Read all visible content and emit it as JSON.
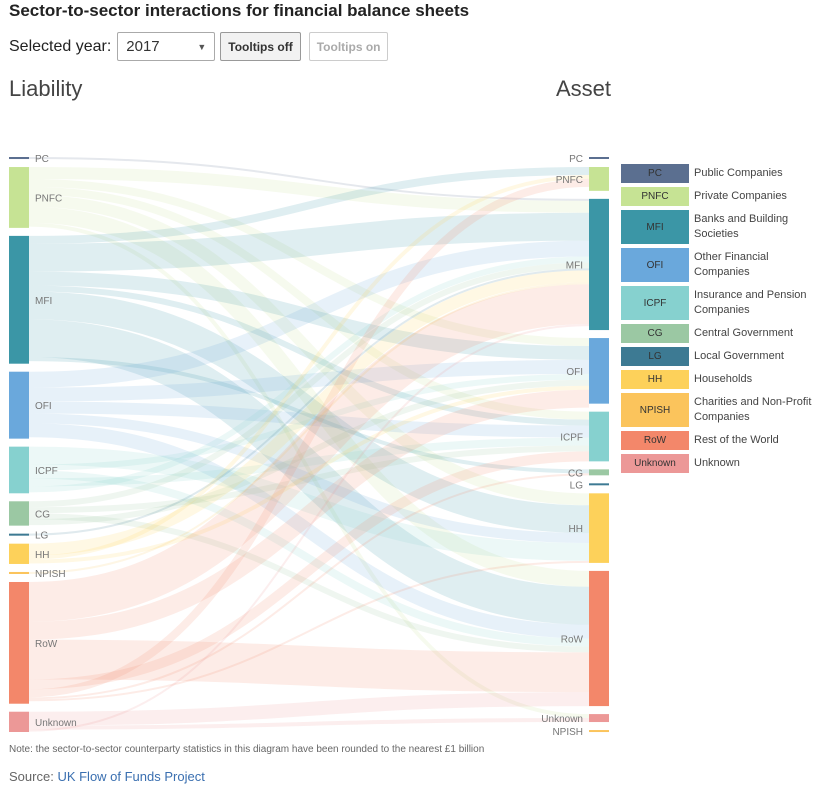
{
  "title": "Sector-to-sector interactions for financial balance sheets",
  "controls": {
    "year_label": "Selected year:",
    "year_value": "2017",
    "tooltips_off": "Tooltips off",
    "tooltips_on": "Tooltips on"
  },
  "headers": {
    "left": "Liability",
    "right": "Asset"
  },
  "colors": {
    "PC": "#5b6f90",
    "PNFC": "#c6e394",
    "MFI": "#3b96a6",
    "OFI": "#6aa8dc",
    "ICPF": "#86d1cf",
    "CG": "#9bc8a3",
    "LG": "#3d7a93",
    "HH": "#fdd15a",
    "NPISH": "#fbc45c",
    "RoW": "#f3876a",
    "Unknown": "#ec9897"
  },
  "chart_data": {
    "type": "sankey",
    "title": "Sector-to-sector interactions for financial balance sheets",
    "year": "2017",
    "left_axis": "Liability",
    "right_axis": "Asset",
    "units": "relative share of balance sheet (approx.)",
    "liability_nodes": [
      {
        "id": "PC",
        "value": 1
      },
      {
        "id": "PNFC",
        "value": 30
      },
      {
        "id": "MFI",
        "value": 63
      },
      {
        "id": "OFI",
        "value": 33
      },
      {
        "id": "ICPF",
        "value": 23
      },
      {
        "id": "CG",
        "value": 12
      },
      {
        "id": "LG",
        "value": 1
      },
      {
        "id": "HH",
        "value": 10
      },
      {
        "id": "NPISH",
        "value": 1
      },
      {
        "id": "RoW",
        "value": 60
      },
      {
        "id": "Unknown",
        "value": 10
      }
    ],
    "asset_nodes": [
      {
        "id": "PC",
        "value": 1
      },
      {
        "id": "PNFC",
        "value": 12
      },
      {
        "id": "MFI",
        "value": 66
      },
      {
        "id": "OFI",
        "value": 33
      },
      {
        "id": "ICPF",
        "value": 25
      },
      {
        "id": "CG",
        "value": 3
      },
      {
        "id": "LG",
        "value": 1
      },
      {
        "id": "HH",
        "value": 35
      },
      {
        "id": "RoW",
        "value": 68
      },
      {
        "id": "Unknown",
        "value": 4
      },
      {
        "id": "NPISH",
        "value": 1
      }
    ],
    "flows": [
      {
        "from": "PC",
        "to": "MFI",
        "value": 1
      },
      {
        "from": "PNFC",
        "to": "MFI",
        "value": 6
      },
      {
        "from": "PNFC",
        "to": "OFI",
        "value": 4
      },
      {
        "from": "PNFC",
        "to": "ICPF",
        "value": 4
      },
      {
        "from": "PNFC",
        "to": "HH",
        "value": 6
      },
      {
        "from": "PNFC",
        "to": "RoW",
        "value": 8
      },
      {
        "from": "PNFC",
        "to": "Unknown",
        "value": 2
      },
      {
        "from": "MFI",
        "to": "PNFC",
        "value": 4
      },
      {
        "from": "MFI",
        "to": "MFI",
        "value": 14
      },
      {
        "from": "MFI",
        "to": "OFI",
        "value": 7
      },
      {
        "from": "MFI",
        "to": "ICPF",
        "value": 3
      },
      {
        "from": "MFI",
        "to": "HH",
        "value": 14
      },
      {
        "from": "MFI",
        "to": "RoW",
        "value": 19
      },
      {
        "from": "MFI",
        "to": "CG",
        "value": 2
      },
      {
        "from": "OFI",
        "to": "MFI",
        "value": 8
      },
      {
        "from": "OFI",
        "to": "OFI",
        "value": 7
      },
      {
        "from": "OFI",
        "to": "ICPF",
        "value": 6
      },
      {
        "from": "OFI",
        "to": "HH",
        "value": 5
      },
      {
        "from": "OFI",
        "to": "RoW",
        "value": 7
      },
      {
        "from": "ICPF",
        "to": "HH",
        "value": 9
      },
      {
        "from": "ICPF",
        "to": "OFI",
        "value": 3
      },
      {
        "from": "ICPF",
        "to": "RoW",
        "value": 4
      },
      {
        "from": "ICPF",
        "to": "ICPF",
        "value": 4
      },
      {
        "from": "ICPF",
        "to": "MFI",
        "value": 3
      },
      {
        "from": "CG",
        "to": "MFI",
        "value": 3
      },
      {
        "from": "CG",
        "to": "ICPF",
        "value": 3
      },
      {
        "from": "CG",
        "to": "RoW",
        "value": 3
      },
      {
        "from": "CG",
        "to": "OFI",
        "value": 3
      },
      {
        "from": "LG",
        "to": "MFI",
        "value": 1
      },
      {
        "from": "HH",
        "to": "MFI",
        "value": 6
      },
      {
        "from": "HH",
        "to": "PNFC",
        "value": 2
      },
      {
        "from": "HH",
        "to": "OFI",
        "value": 2
      },
      {
        "from": "NPISH",
        "to": "MFI",
        "value": 1
      },
      {
        "from": "RoW",
        "to": "MFI",
        "value": 20
      },
      {
        "from": "RoW",
        "to": "OFI",
        "value": 9
      },
      {
        "from": "RoW",
        "to": "RoW",
        "value": 20
      },
      {
        "from": "RoW",
        "to": "ICPF",
        "value": 5
      },
      {
        "from": "RoW",
        "to": "PNFC",
        "value": 4
      },
      {
        "from": "RoW",
        "to": "CG",
        "value": 1
      },
      {
        "from": "RoW",
        "to": "HH",
        "value": 1
      },
      {
        "from": "Unknown",
        "to": "RoW",
        "value": 7
      },
      {
        "from": "Unknown",
        "to": "Unknown",
        "value": 2
      },
      {
        "from": "Unknown",
        "to": "MFI",
        "value": 1
      }
    ]
  },
  "legend": [
    {
      "code": "PC",
      "label": "Public Companies"
    },
    {
      "code": "PNFC",
      "label": "Private Companies"
    },
    {
      "code": "MFI",
      "label": "Banks and Building Societies"
    },
    {
      "code": "OFI",
      "label": "Other Financial Companies"
    },
    {
      "code": "ICPF",
      "label": "Insurance and Pension Companies"
    },
    {
      "code": "CG",
      "label": "Central Government"
    },
    {
      "code": "LG",
      "label": "Local Government"
    },
    {
      "code": "HH",
      "label": "Households"
    },
    {
      "code": "NPISH",
      "label": "Charities and Non-Profit Companies"
    },
    {
      "code": "RoW",
      "label": "Rest of the World"
    },
    {
      "code": "Unknown",
      "label": "Unknown"
    }
  ],
  "footer": {
    "note": "Note: the sector-to-sector counterparty statistics in this diagram have been rounded to the nearest £1 billion",
    "source_label": "Source:",
    "source_link": "UK Flow of Funds Project"
  }
}
